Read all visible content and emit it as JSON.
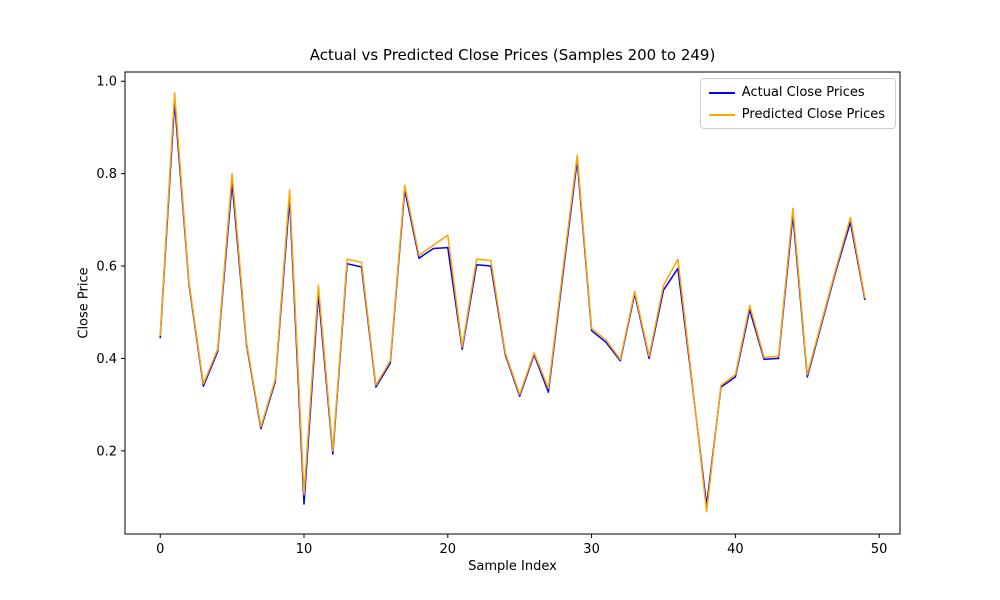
{
  "chart_data": {
    "type": "line",
    "title": "Actual vs Predicted Close Prices (Samples 200 to 249)",
    "xlabel": "Sample Index",
    "ylabel": "Close Price",
    "legend_position": "upper right",
    "grid": false,
    "xlim": [
      -2.45,
      51.45
    ],
    "ylim": [
      0.02,
      1.02
    ],
    "xticks": [
      0,
      10,
      20,
      30,
      40,
      50
    ],
    "yticks": [
      0.2,
      0.4,
      0.6,
      0.8,
      1.0
    ],
    "x": [
      0,
      1,
      2,
      3,
      4,
      5,
      6,
      7,
      8,
      9,
      10,
      11,
      12,
      13,
      14,
      15,
      16,
      17,
      18,
      19,
      20,
      21,
      22,
      23,
      24,
      25,
      26,
      27,
      28,
      29,
      30,
      31,
      32,
      33,
      34,
      35,
      36,
      37,
      38,
      39,
      40,
      41,
      42,
      43,
      44,
      45,
      46,
      47,
      48,
      49
    ],
    "series": [
      {
        "name": "Actual Close Prices",
        "color": "#0000ff",
        "values": [
          0.445,
          0.955,
          0.56,
          0.34,
          0.415,
          0.78,
          0.43,
          0.248,
          0.35,
          0.745,
          0.085,
          0.54,
          0.193,
          0.605,
          0.598,
          0.338,
          0.39,
          0.765,
          0.617,
          0.638,
          0.64,
          0.42,
          0.603,
          0.6,
          0.408,
          0.318,
          0.408,
          0.327,
          0.58,
          0.828,
          0.46,
          0.435,
          0.395,
          0.54,
          0.4,
          0.548,
          0.595,
          0.345,
          0.082,
          0.338,
          0.36,
          0.505,
          0.398,
          0.4,
          0.71,
          0.36,
          0.475,
          0.59,
          0.695,
          0.528
        ]
      },
      {
        "name": "Predicted Close Prices",
        "color": "#ffa500",
        "values": [
          0.45,
          0.975,
          0.565,
          0.345,
          0.42,
          0.8,
          0.435,
          0.252,
          0.355,
          0.765,
          0.105,
          0.558,
          0.2,
          0.615,
          0.608,
          0.342,
          0.395,
          0.775,
          0.623,
          0.645,
          0.667,
          0.425,
          0.615,
          0.612,
          0.412,
          0.322,
          0.412,
          0.335,
          0.59,
          0.84,
          0.465,
          0.44,
          0.398,
          0.545,
          0.405,
          0.558,
          0.615,
          0.35,
          0.068,
          0.342,
          0.365,
          0.515,
          0.402,
          0.405,
          0.725,
          0.365,
          0.48,
          0.595,
          0.705,
          0.532
        ]
      }
    ]
  }
}
